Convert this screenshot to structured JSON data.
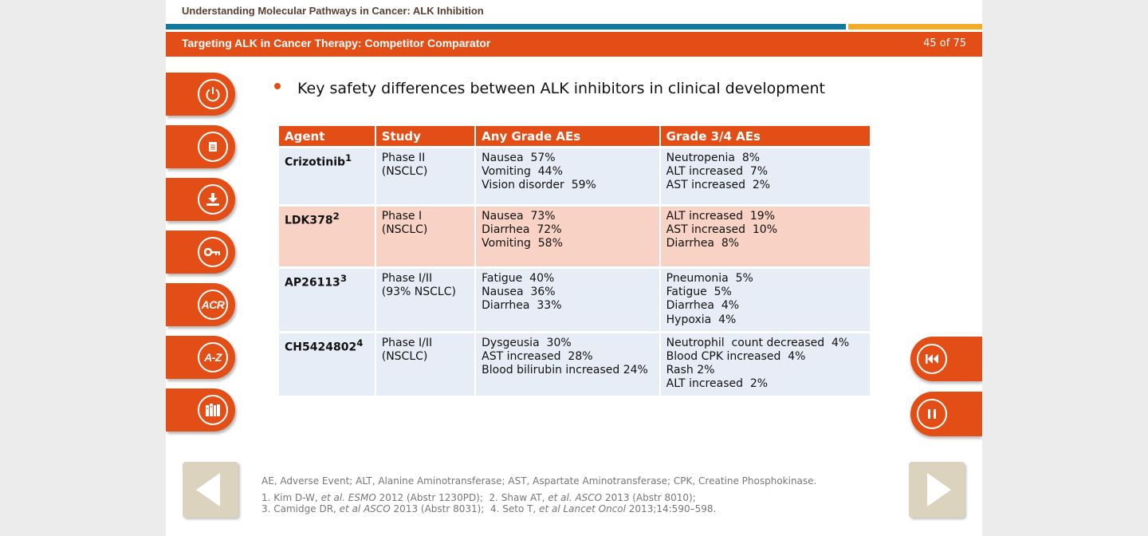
{
  "header": {
    "course_title": "Understanding Molecular Pathways in Cancer: ALK Inhibition",
    "slide_title": "Targeting ALK in Cancer Therapy: Competitor Comparator",
    "page_counter": "45 of 75"
  },
  "side_nav": [
    {
      "name": "power",
      "icon": "power-icon"
    },
    {
      "name": "notes",
      "icon": "document-icon"
    },
    {
      "name": "download",
      "icon": "download-icon"
    },
    {
      "name": "key",
      "icon": "key-icon"
    },
    {
      "name": "acronyms",
      "icon": "acr-icon",
      "label": "ACR"
    },
    {
      "name": "glossary",
      "icon": "az-icon",
      "label": "A-Z"
    },
    {
      "name": "library",
      "icon": "books-icon"
    }
  ],
  "bullet": "Key safety differences between ALK inhibitors in clinical development",
  "table": {
    "headers": [
      "Agent",
      "Study",
      "Any Grade AEs",
      "Grade 3/4 AEs"
    ],
    "rows": [
      {
        "agent": "Crizotinib",
        "sup": "1",
        "study": [
          "Phase II",
          "(NSCLC)"
        ],
        "any_grade": [
          "Nausea  57%",
          "Vomiting  44%",
          "Vision disorder  59%"
        ],
        "grade34": [
          "Neutropenia  8%",
          "ALT increased  7%",
          "AST increased  2%"
        ]
      },
      {
        "agent": "LDK378",
        "sup": "2",
        "study": [
          "Phase I",
          "(NSCLC)"
        ],
        "any_grade": [
          "Nausea  73%",
          "Diarrhea  72%",
          "Vomiting  58%"
        ],
        "grade34": [
          "ALT increased  19%",
          "AST increased  10%",
          "Diarrhea  8%"
        ]
      },
      {
        "agent": "AP26113",
        "sup": "3",
        "study": [
          "Phase I/II",
          "(93% NSCLC)"
        ],
        "any_grade": [
          "Fatigue  40%",
          "Nausea  36%",
          "Diarrhea  33%"
        ],
        "grade34": [
          "Pneumonia  5%",
          "Fatigue  5%",
          "Diarrhea  4%",
          "Hypoxia  4%"
        ]
      },
      {
        "agent": "CH5424802",
        "sup": "4",
        "study": [
          "Phase I/II",
          "(NSCLC)"
        ],
        "any_grade": [
          "Dysgeusia  30%",
          "AST increased  28%",
          "Blood bilirubin  increased 24%"
        ],
        "grade34": [
          "Neutrophil  count decreased  4%",
          "Blood CPK increased  4%",
          "Rash 2%",
          "ALT increased  2%"
        ]
      }
    ]
  },
  "footnotes": {
    "abbreviations": "AE, Adverse Event; ALT,  Alanine Aminotransferase; AST,  Aspartate Aminotransferase; CPK, Creatine Phosphokinase.",
    "ref1": {
      "a": "1. Kim D-W, ",
      "b": "et al. ESMO",
      "c": " 2012 (Abstr 1230PD);  2. Shaw AT, ",
      "d": "et al. ASCO",
      "e": " 2013 (Abstr 8010);"
    },
    "ref2": {
      "a": "3. Camidge DR, ",
      "b": "et al ASCO",
      "c": " 2013 (Abstr 8031);  4. Seto T, ",
      "d": "et al Lancet Oncol",
      "e": " 2013;14:590–598."
    }
  },
  "media": [
    "rewind",
    "pause"
  ],
  "colors": {
    "accent": "#e34e17",
    "blue_stripe": "#0f7a9e",
    "gold_stripe": "#f5ab25",
    "row_blue": "#e7edf6",
    "row_pink": "#f8d2c4",
    "arrow_bg": "#dcd3bf"
  }
}
